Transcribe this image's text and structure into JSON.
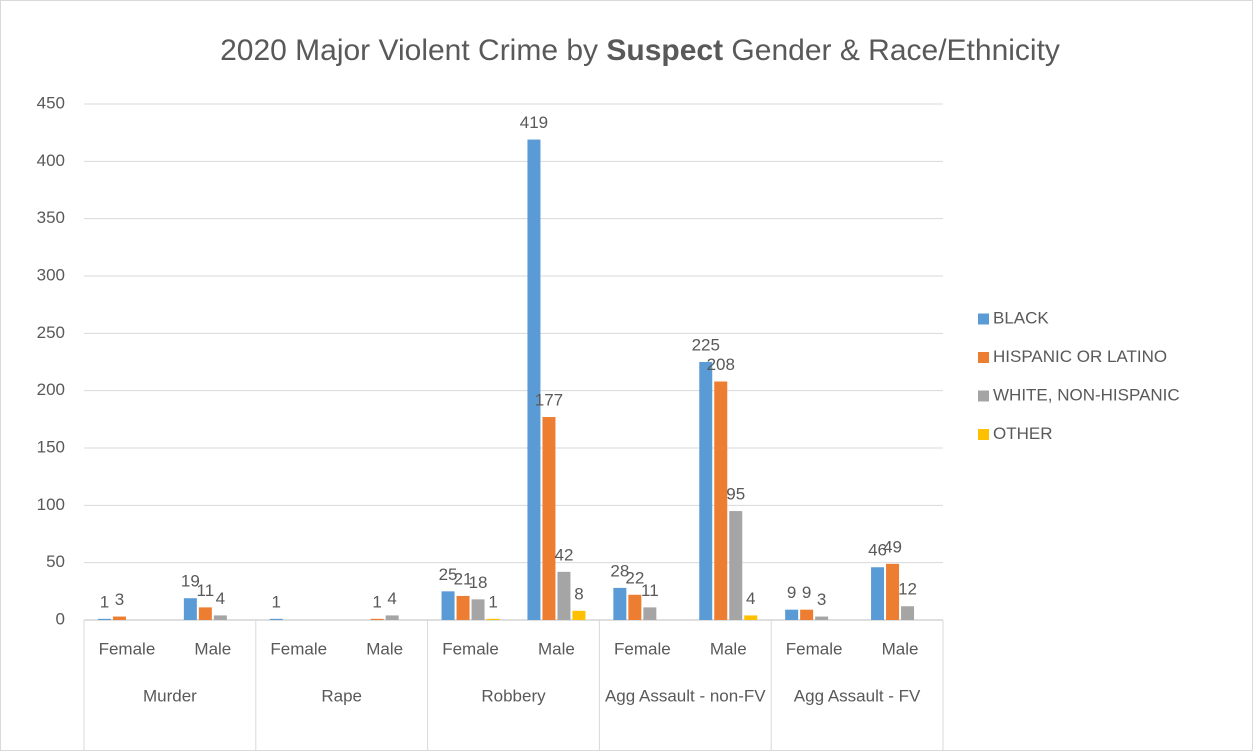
{
  "chart_data": {
    "type": "bar",
    "title": [
      "2020 Major Violent Crime by ",
      "Suspect",
      " Gender & Race/Ethnicity"
    ],
    "groups": [
      "Murder",
      "Rape",
      "Robbery",
      "Agg Assault - non-FV",
      "Agg Assault - FV"
    ],
    "categories": [
      "Female",
      "Male",
      "Female",
      "Male",
      "Female",
      "Male",
      "Female",
      "Male",
      "Female",
      "Male"
    ],
    "series": [
      {
        "name": "BLACK",
        "color": "#5b9bd5",
        "values": [
          1,
          19,
          1,
          null,
          25,
          419,
          28,
          225,
          9,
          46
        ]
      },
      {
        "name": "HISPANIC OR LATINO",
        "color": "#ed7d31",
        "values": [
          3,
          11,
          null,
          1,
          21,
          177,
          22,
          208,
          9,
          49
        ]
      },
      {
        "name": "WHITE, NON-HISPANIC",
        "color": "#a5a5a5",
        "values": [
          null,
          4,
          null,
          4,
          18,
          42,
          11,
          95,
          3,
          12
        ]
      },
      {
        "name": "OTHER",
        "color": "#ffc000",
        "values": [
          null,
          null,
          null,
          null,
          1,
          8,
          null,
          4,
          null,
          null
        ]
      }
    ],
    "ylim": [
      0,
      450
    ],
    "yticks": [
      0,
      50,
      100,
      150,
      200,
      250,
      300,
      350,
      400,
      450
    ],
    "grid": true,
    "legend": "right"
  }
}
